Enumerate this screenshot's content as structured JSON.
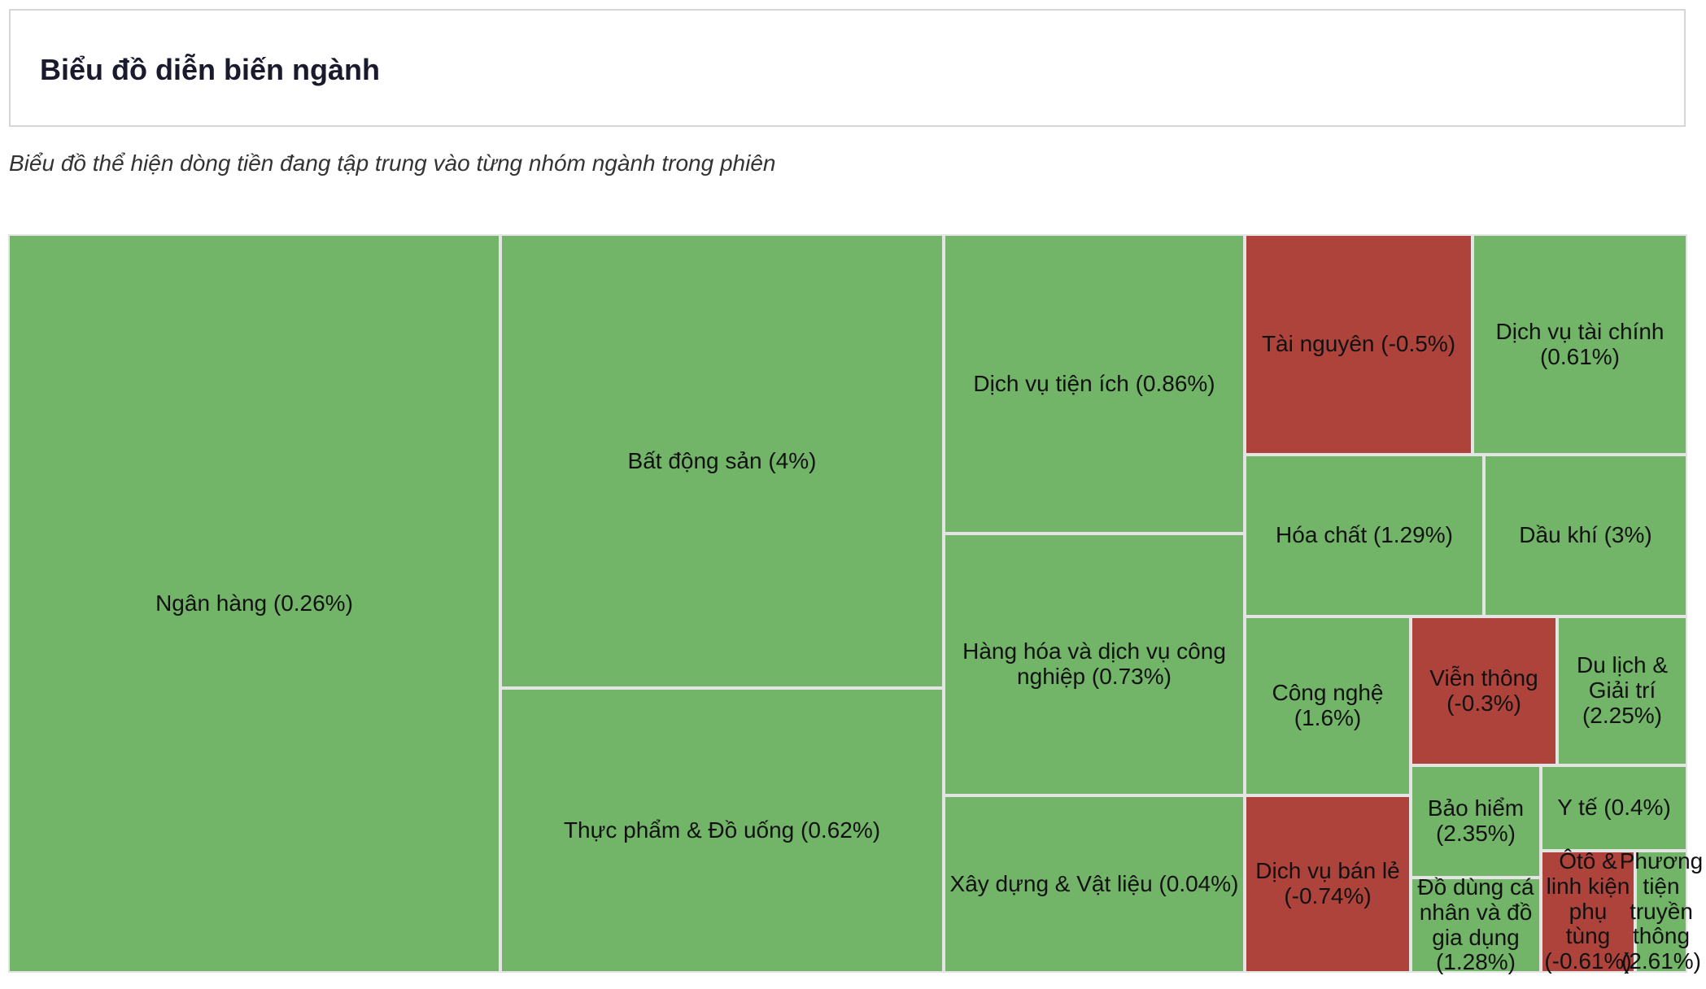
{
  "header": {
    "title": "Biểu đồ diễn biến ngành"
  },
  "subtitle": "Biểu đồ thể hiện dòng tiền đang tập trung vào từng nhóm ngành trong phiên",
  "colors": {
    "positive": "#72b468",
    "negative": "#ae433c"
  },
  "chart_data": {
    "type": "treemap",
    "title": "Biểu đồ diễn biến ngành",
    "items": [
      {
        "name": "Ngân hàng",
        "change": 0.26,
        "label": "Ngân hàng (0.26%)"
      },
      {
        "name": "Bất động sản",
        "change": 4,
        "label": "Bất động sản (4%)"
      },
      {
        "name": "Thực phẩm & Đồ uống",
        "change": 0.62,
        "label": "Thực phẩm & Đồ uống (0.62%)"
      },
      {
        "name": "Dịch vụ tiện ích",
        "change": 0.86,
        "label": "Dịch vụ tiện ích (0.86%)"
      },
      {
        "name": "Hàng hóa và dịch vụ công nghiệp",
        "change": 0.73,
        "label": "Hàng hóa và dịch vụ công nghiệp (0.73%)"
      },
      {
        "name": "Xây dựng & Vật liệu",
        "change": 0.04,
        "label": "Xây dựng & Vật liệu (0.04%)"
      },
      {
        "name": "Tài nguyên",
        "change": -0.5,
        "label": "Tài nguyên (-0.5%)"
      },
      {
        "name": "Dịch vụ tài chính",
        "change": 0.61,
        "label": "Dịch vụ tài chính (0.61%)"
      },
      {
        "name": "Hóa chất",
        "change": 1.29,
        "label": "Hóa chất (1.29%)"
      },
      {
        "name": "Dầu khí",
        "change": 3,
        "label": "Dầu khí (3%)"
      },
      {
        "name": "Công nghệ",
        "change": 1.6,
        "label": "Công nghệ (1.6%)"
      },
      {
        "name": "Viễn thông",
        "change": -0.3,
        "label": "Viễn thông (-0.3%)"
      },
      {
        "name": "Du lịch & Giải trí",
        "change": 2.25,
        "label": "Du lịch & Giải trí (2.25%)"
      },
      {
        "name": "Dịch vụ bán lẻ",
        "change": -0.74,
        "label": "Dịch vụ bán lẻ (-0.74%)"
      },
      {
        "name": "Bảo hiểm",
        "change": 2.35,
        "label": "Bảo hiểm (2.35%)"
      },
      {
        "name": "Y tế",
        "change": 0.4,
        "label": "Y tế (0.4%)"
      },
      {
        "name": "Đồ dùng cá nhân và đồ gia dụng",
        "change": 1.28,
        "label": "Đồ dùng cá nhân và đồ gia dụng (1.28%)"
      },
      {
        "name": "Ôtô & linh kiện phụ tùng",
        "change": -0.61,
        "label": "Ôtô & linh kiện phụ tùng (-0.61%)"
      },
      {
        "name": "Phương tiện truyền thông",
        "change": 2.61,
        "label": "Phương tiện truyền thông (2.61%)"
      }
    ]
  }
}
